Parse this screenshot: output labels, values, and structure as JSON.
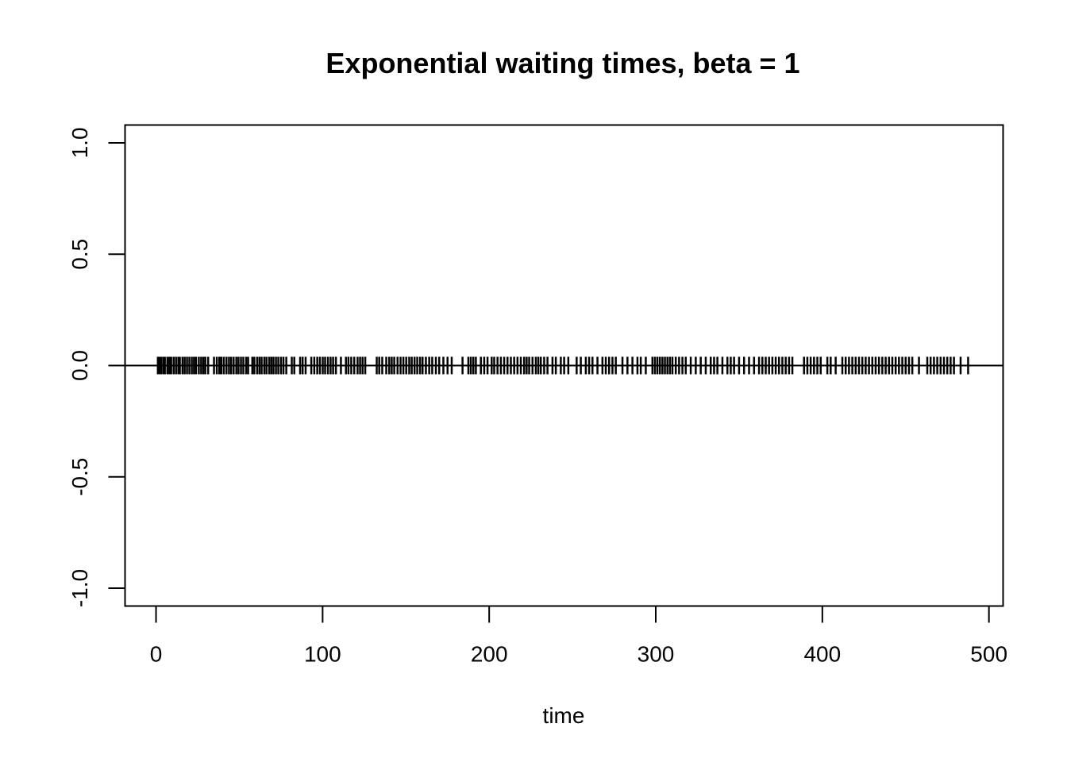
{
  "chart_data": {
    "type": "scatter",
    "title": "Exponential waiting times, beta = 1",
    "xlabel": "time",
    "ylabel": "",
    "xlim": [
      -18.6,
      508.5
    ],
    "ylim": [
      -1.08,
      1.08
    ],
    "x_ticks": [
      0,
      100,
      200,
      300,
      400,
      500
    ],
    "x_tick_labels": [
      "0",
      "100",
      "200",
      "300",
      "400",
      "500"
    ],
    "y_ticks": [
      -1.0,
      -0.5,
      0.0,
      0.5,
      1.0
    ],
    "y_tick_labels": [
      "-1.0",
      "-0.5",
      "0.0",
      "0.5",
      "1.0"
    ],
    "reference_line_y": 0,
    "grid": false,
    "legend": "none",
    "mark": "vertical-tick",
    "color": "#000000",
    "events": [
      1.1,
      2.0,
      3.2,
      4.5,
      5.3,
      6.8,
      8.0,
      9.1,
      10.6,
      12.0,
      13.4,
      14.3,
      15.9,
      17.2,
      18.6,
      20.0,
      21.5,
      22.8,
      24.0,
      25.7,
      27.1,
      28.4,
      29.6,
      31.3,
      34.8,
      36.5,
      38.0,
      39.2,
      40.7,
      42.3,
      43.8,
      45.1,
      46.6,
      48.2,
      49.5,
      51.0,
      52.4,
      54.1,
      55.3,
      57.8,
      59.0,
      60.7,
      62.1,
      63.4,
      65.0,
      66.3,
      67.9,
      69.2,
      70.5,
      72.0,
      73.4,
      75.0,
      76.5,
      78.2,
      81.5,
      83.0,
      86.5,
      88.0,
      89.8,
      93.2,
      95.0,
      96.8,
      98.4,
      100.1,
      101.5,
      103.2,
      104.8,
      106.3,
      108.0,
      111.0,
      114.0,
      115.5,
      117.2,
      119.0,
      121.0,
      122.5,
      124.0,
      125.6,
      132.5,
      134.0,
      135.8,
      138.2,
      140.0,
      141.5,
      143.0,
      145.0,
      146.8,
      148.5,
      150.2,
      152.0,
      153.5,
      155.2,
      156.8,
      158.5,
      160.0,
      162.0,
      164.0,
      165.8,
      168.0,
      170.0,
      172.5,
      175.0,
      177.5,
      184.0,
      187.5,
      189.0,
      190.5,
      192.0,
      195.0,
      197.0,
      199.0,
      201.5,
      203.0,
      205.0,
      207.0,
      209.0,
      211.0,
      213.0,
      215.0,
      217.0,
      219.0,
      221.0,
      222.5,
      224.0,
      226.0,
      228.0,
      229.5,
      231.0,
      233.0,
      235.0,
      238.0,
      240.0,
      243.0,
      245.0,
      247.5,
      252.5,
      255.0,
      258.0,
      260.0,
      262.0,
      265.0,
      268.0,
      270.0,
      272.0,
      274.0,
      276.0,
      280.0,
      283.0,
      286.0,
      289.0,
      291.0,
      294.0,
      298.0,
      299.5,
      301.0,
      302.5,
      304.0,
      305.5,
      307.0,
      308.5,
      310.0,
      312.0,
      314.0,
      316.0,
      318.0,
      321.0,
      324.0,
      327.0,
      330.0,
      333.0,
      335.0,
      337.0,
      340.0,
      343.0,
      345.0,
      347.0,
      350.0,
      353.0,
      356.0,
      359.0,
      362.0,
      364.0,
      366.0,
      368.0,
      370.0,
      372.0,
      374.0,
      376.0,
      378.0,
      380.0,
      382.0,
      389.0,
      391.0,
      393.0,
      395.0,
      397.0,
      399.0,
      403.0,
      405.0,
      408.0,
      412.0,
      414.0,
      416.0,
      418.0,
      420.0,
      422.0,
      424.0,
      426.0,
      428.0,
      430.0,
      432.0,
      434.0,
      436.0,
      438.0,
      440.0,
      442.0,
      444.0,
      446.0,
      448.0,
      450.0,
      452.0,
      454.0,
      458.0,
      463.0,
      465.0,
      467.0,
      469.0,
      471.0,
      473.0,
      475.0,
      477.0,
      479.0,
      483.0,
      487.5
    ]
  }
}
